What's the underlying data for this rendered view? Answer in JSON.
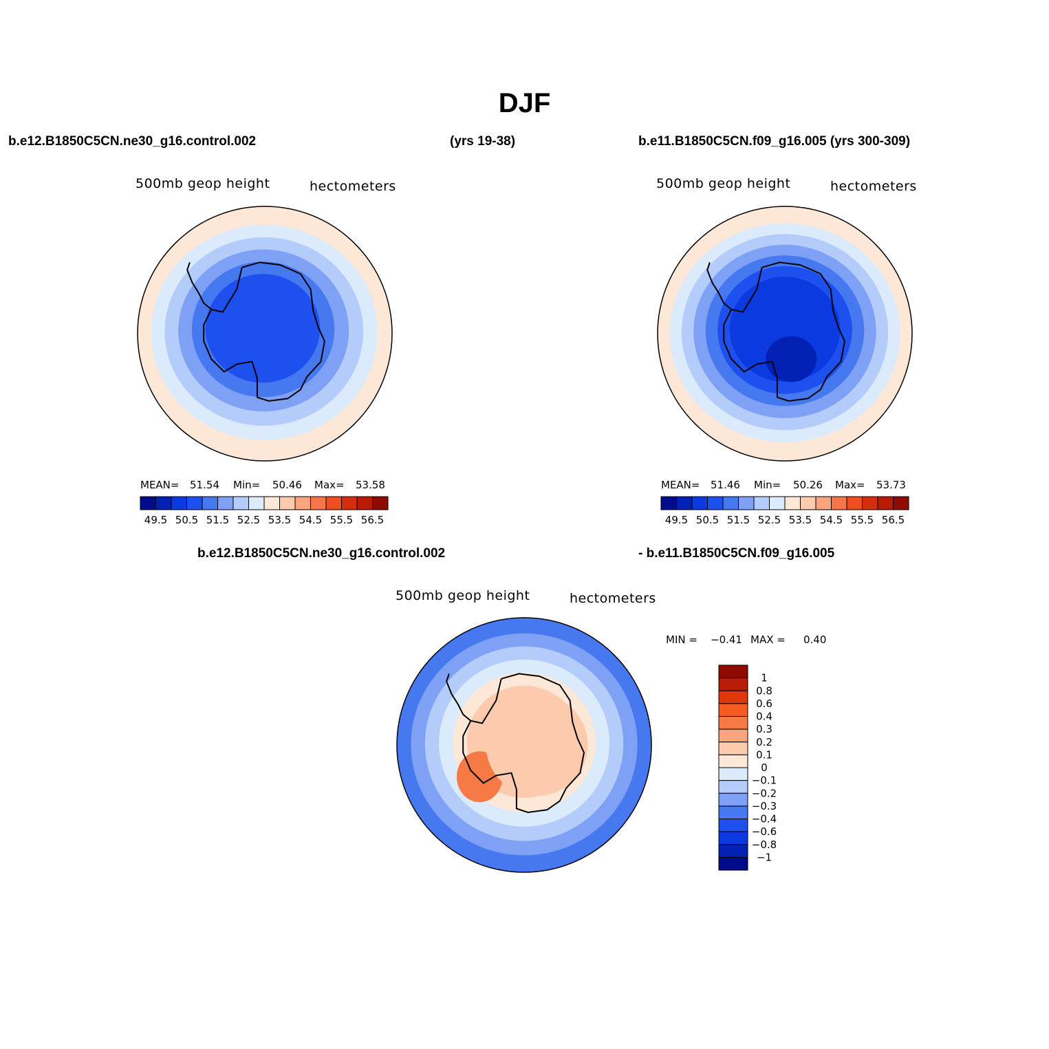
{
  "figure": {
    "title": "DJF",
    "header_left": "b.e12.B1850C5CN.ne30_g16.control.002",
    "header_mid": "(yrs 19-38)",
    "header_right": "b.e11.B1850C5CN.f09_g16.005 (yrs 300-309)",
    "diff_left": "b.e12.B1850C5CN.ne30_g16.control.002",
    "diff_right": "- b.e11.B1850C5CN.f09_g16.005"
  },
  "chart_data": [
    {
      "type": "heatmap",
      "projection": "south polar stereographic",
      "variable": "500mb geop height",
      "units": "hectometers",
      "case": "b.e12.B1850C5CN.ne30_g16.control.002",
      "years": "(yrs 19-38)",
      "mean_label": "MEAN=",
      "mean": "51.54",
      "min_label": "Min=",
      "min": "50.46",
      "max_label": "Max=",
      "max": "53.58",
      "levels": [
        49.5,
        50,
        50.5,
        51,
        51.5,
        52,
        52.5,
        53,
        53.5,
        54,
        54.5,
        55,
        55.5,
        56,
        56.5
      ],
      "colorbar_labels": [
        "49.5",
        "50.5",
        "51.5",
        "52.5",
        "53.5",
        "54.5",
        "55.5",
        "56.5"
      ],
      "colors": [
        "#000c8c",
        "#0120b4",
        "#0a3ae0",
        "#1e50f0",
        "#4678f0",
        "#7ea0f5",
        "#b4ccfa",
        "#dcebfc",
        "#fde7d7",
        "#fccbae",
        "#f9a47d",
        "#f5764a",
        "#ef4d22",
        "#d52e0e",
        "#b81c05",
        "#8f0a00"
      ],
      "rings": [
        "#fde7d7",
        "#dcebfc",
        "#b4ccfa",
        "#7ea0f5",
        "#4678f0",
        "#1e50f0"
      ]
    },
    {
      "type": "heatmap",
      "projection": "south polar stereographic",
      "variable": "500mb geop height",
      "units": "hectometers",
      "case": "b.e11.B1850C5CN.f09_g16.005",
      "years": "(yrs 300-309)",
      "mean_label": "MEAN=",
      "mean": "51.46",
      "min_label": "Min=",
      "min": "50.26",
      "max_label": "Max=",
      "max": "53.73",
      "levels": [
        49.5,
        50,
        50.5,
        51,
        51.5,
        52,
        52.5,
        53,
        53.5,
        54,
        54.5,
        55,
        55.5,
        56,
        56.5
      ],
      "colorbar_labels": [
        "49.5",
        "50.5",
        "51.5",
        "52.5",
        "53.5",
        "54.5",
        "55.5",
        "56.5"
      ],
      "colors": [
        "#000c8c",
        "#0120b4",
        "#0a3ae0",
        "#1e50f0",
        "#4678f0",
        "#7ea0f5",
        "#b4ccfa",
        "#dcebfc",
        "#fde7d7",
        "#fccbae",
        "#f9a47d",
        "#f5764a",
        "#ef4d22",
        "#d52e0e",
        "#b81c05",
        "#8f0a00"
      ],
      "rings": [
        "#fde7d7",
        "#dcebfc",
        "#b4ccfa",
        "#7ea0f5",
        "#4678f0",
        "#1e50f0",
        "#0a3ae0"
      ]
    },
    {
      "type": "heatmap",
      "projection": "south polar stereographic",
      "variable": "500mb geop height",
      "units": "hectometers",
      "case": "difference",
      "min_label": "MIN =",
      "min": "−0.41",
      "max_label": "MAX =",
      "max": "0.40",
      "levels": [
        -1,
        -0.8,
        -0.6,
        -0.4,
        -0.3,
        -0.2,
        -0.1,
        0,
        0.1,
        0.2,
        0.3,
        0.4,
        0.6,
        0.8,
        1
      ],
      "colorbar_labels": [
        "1",
        "0.8",
        "0.6",
        "0.4",
        "0.3",
        "0.2",
        "0.1",
        "0",
        "−0.1",
        "−0.2",
        "−0.3",
        "−0.4",
        "−0.6",
        "−0.8",
        "−1"
      ],
      "colors": [
        "#8f0a00",
        "#b81c05",
        "#e03808",
        "#f55a20",
        "#f57a45",
        "#f9a47d",
        "#fccbae",
        "#fde7d7",
        "#dcebfc",
        "#b4ccfa",
        "#7ea0f5",
        "#4678f0",
        "#1e50f0",
        "#0a3ae0",
        "#0120b4",
        "#000c8c"
      ],
      "rings": [
        "#4678f0",
        "#7ea0f5",
        "#b4ccfa",
        "#dcebfc",
        "#fde7d7",
        "#fccbae"
      ]
    }
  ]
}
